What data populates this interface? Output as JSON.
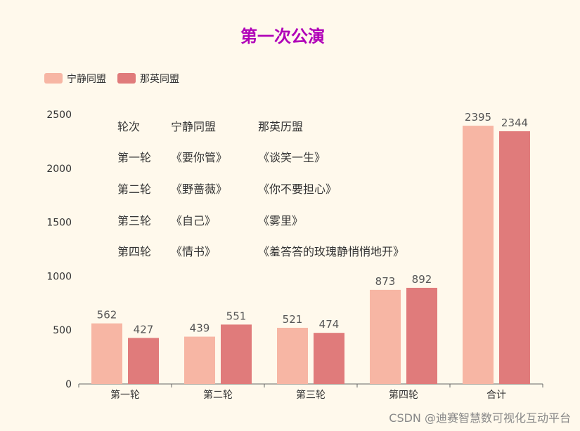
{
  "chart_data": {
    "type": "bar",
    "title": "第一次公演",
    "categories": [
      "第一轮",
      "第二轮",
      "第三轮",
      "第四轮",
      "合计"
    ],
    "series": [
      {
        "name": "宁静同盟",
        "values": [
          562,
          439,
          521,
          873,
          2395
        ]
      },
      {
        "name": "那英同盟",
        "values": [
          427,
          551,
          474,
          892,
          2344
        ]
      }
    ],
    "ylim": [
      0,
      2500
    ],
    "yticks": [
      0,
      500,
      1000,
      1500,
      2000,
      2500
    ],
    "grid": false,
    "legend": "top-left"
  },
  "annotation": {
    "rows": [
      [
        "轮次",
        "宁静同盟",
        "那英历盟"
      ],
      [
        "第一轮",
        "《要你管》",
        "《谈笑一生》"
      ],
      [
        "第二轮",
        "《野蔷薇》",
        "《你不要担心》"
      ],
      [
        "第三轮",
        "《自己》",
        "《雾里》"
      ],
      [
        "第四轮",
        "《情书》",
        "《羞答答的玫瑰静悄悄地开》"
      ]
    ]
  },
  "watermark": "CSDN @迪赛智慧数可视化互动平台",
  "colors": {
    "title": "#b000b8",
    "series": [
      "#f7b6a4",
      "#e07b7b"
    ],
    "axis": "#666666",
    "background": "#fff9ec"
  }
}
